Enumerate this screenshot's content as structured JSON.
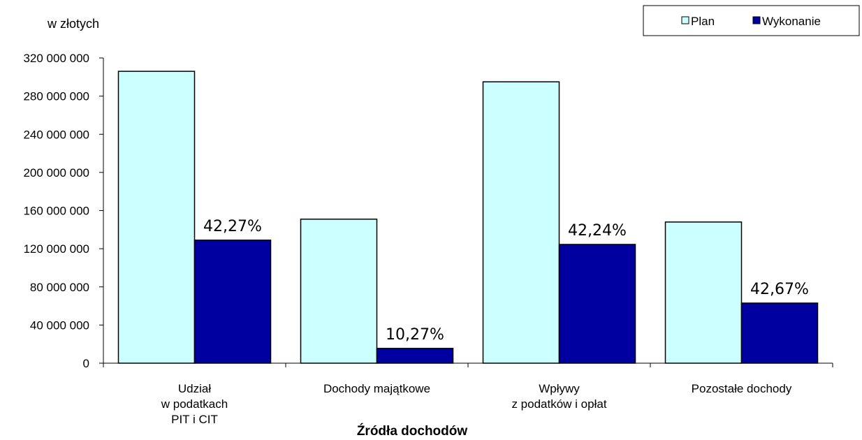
{
  "chart_data": {
    "type": "bar",
    "unit_label": "w złotych",
    "xlabel": "Źródła dochodów",
    "ylabel": "",
    "ylim": [
      0,
      320000000
    ],
    "yticks": [
      "0",
      "40 000 000",
      "80 000 000",
      "120 000 000",
      "160 000 000",
      "200 000 000",
      "240 000 000",
      "280 000 000",
      "320 000 000"
    ],
    "ytick_values": [
      0,
      40000000,
      80000000,
      120000000,
      160000000,
      200000000,
      240000000,
      280000000,
      320000000
    ],
    "categories": [
      [
        "Udział",
        "w podatkach",
        "PIT i CIT"
      ],
      [
        "Dochody majątkowe"
      ],
      [
        "Wpływy",
        "z podatków i opłat"
      ],
      [
        "Pozostałe dochody"
      ]
    ],
    "series": [
      {
        "name": "Plan",
        "color": "#ccffff",
        "values": [
          306000000,
          151000000,
          295000000,
          148000000
        ]
      },
      {
        "name": "Wykonanie",
        "color": "#0000a0",
        "values": [
          129000000,
          15500000,
          124500000,
          63000000
        ]
      }
    ],
    "data_labels": [
      "42,27%",
      "10,27%",
      "42,24%",
      "42,67%"
    ],
    "legend_position": "top-right",
    "grid": false
  }
}
